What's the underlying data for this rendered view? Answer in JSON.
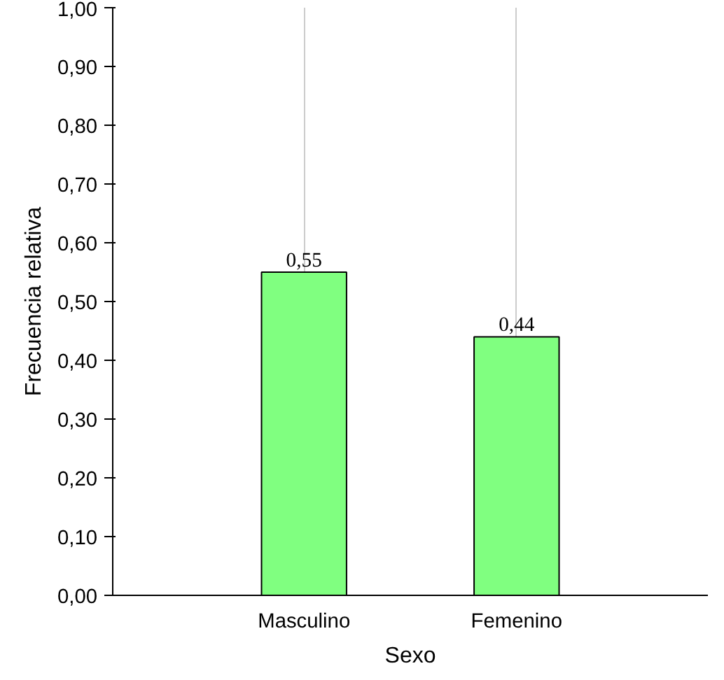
{
  "chart_data": {
    "type": "bar",
    "xlabel": "Sexo",
    "ylabel": "Frecuencia relativa",
    "categories": [
      "Masculino",
      "Femenino"
    ],
    "values": [
      0.55,
      0.44
    ],
    "color": "#80ff80",
    "data_labels": true,
    "value_labels": [
      "0,55",
      "0,44"
    ],
    "ylim": [
      0,
      1
    ],
    "yticks": [
      {
        "value": 0,
        "label": "0,00"
      },
      {
        "value": 0.1,
        "label": "0,10"
      },
      {
        "value": 0.2,
        "label": "0,20"
      },
      {
        "value": 0.3,
        "label": "0,30"
      },
      {
        "value": 0.4,
        "label": "0,40"
      },
      {
        "value": 0.5,
        "label": "0,50"
      },
      {
        "value": 0.6,
        "label": "0,60"
      },
      {
        "value": 0.7,
        "label": "0,70"
      },
      {
        "value": 0.8,
        "label": "0,80"
      },
      {
        "value": 0.9,
        "label": "0,90"
      },
      {
        "value": 1,
        "label": "1,00"
      }
    ],
    "grid": "x"
  }
}
